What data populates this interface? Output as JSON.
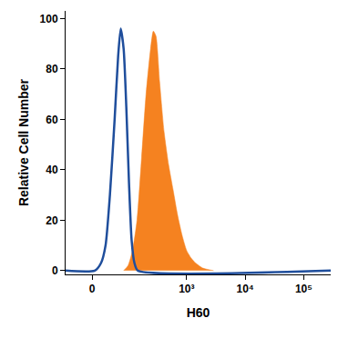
{
  "chart_data": {
    "type": "line",
    "x_label": "H60",
    "y_label": "Relative Cell Number",
    "xlim": [
      -60,
      289000
    ],
    "xticks": [
      0,
      {
        "value": 1000,
        "label": "10³"
      },
      {
        "value": 10000,
        "label": "10⁴"
      },
      {
        "value": 100000,
        "label": "10⁵"
      }
    ],
    "ylim": [
      -1.5,
      103
    ],
    "yticks": [
      0,
      20,
      40,
      60,
      80,
      100
    ],
    "grid": false,
    "series": [
      {
        "type": "area",
        "color": "#f58220",
        "x": [
          77,
          94,
          114,
          138,
          167,
          200,
          240,
          268,
          298,
          344,
          411,
          491,
          587,
          701,
          837,
          1000,
          1193,
          1426,
          1892,
          2890
        ],
        "values": [
          0,
          2,
          8,
          20,
          45,
          70,
          88,
          95,
          93,
          75,
          55,
          42,
          32,
          22,
          14,
          8,
          5,
          3,
          1,
          0
        ]
      },
      {
        "type": "line",
        "color": "#1f4e9c",
        "line_style": "solid",
        "x": [
          -60,
          5.2,
          17.5,
          27,
          37,
          49,
          59,
          67,
          77,
          87,
          98,
          110,
          124,
          143,
          289000
        ],
        "values": [
          0,
          0,
          3,
          10,
          30,
          60,
          85,
          96,
          88,
          65,
          35,
          12,
          3,
          0,
          0
        ]
      }
    ]
  }
}
